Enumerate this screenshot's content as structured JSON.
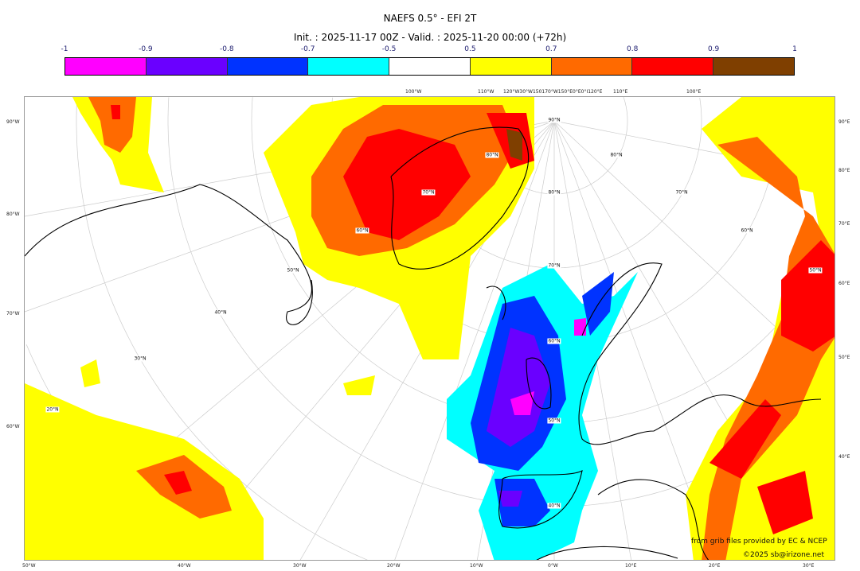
{
  "title": "NAEFS 0.5° - EFI 2T",
  "subtitle": "Init. : 2025-11-17 00Z - Valid. : 2025-11-20 00:00 (+72h)",
  "colorbar": {
    "ticks": [
      "-1",
      "-0.9",
      "-0.8",
      "-0.7",
      "-0.5",
      "0.5",
      "0.7",
      "0.8",
      "0.9",
      "1"
    ],
    "colors": [
      "#ff00ff",
      "#6a00ff",
      "#0033ff",
      "#00ffff",
      "#ffffff",
      "#ffff00",
      "#ff6a00",
      "#ff0000",
      "#7f3f00"
    ]
  },
  "axes": {
    "left": [
      "90°W",
      "80°W",
      "70°W",
      "60°W"
    ],
    "right": [
      "90°E",
      "80°E",
      "70°E",
      "60°E",
      "50°E",
      "40°E"
    ],
    "bottom": [
      "50°W",
      "40°W",
      "30°W",
      "20°W",
      "10°W",
      "0°W",
      "10°E",
      "20°E",
      "30°E"
    ],
    "top": [
      "100°W",
      "110°W",
      "120°W30°W150170°W150°E0°E0°I120°E",
      "110°E",
      "100°E"
    ]
  },
  "lat_labels": [
    "90°N",
    "80°N",
    "70°N",
    "60°N",
    "50°N",
    "40°N",
    "80°N",
    "70°N",
    "60°N",
    "50°N",
    "40°N",
    "30°N",
    "20°N",
    "80°N",
    "70°N",
    "60°N",
    "50°N"
  ],
  "credits": {
    "source": "from grib files provided by EC & NCEP",
    "copyright": "©2025 sb@irizone.net"
  }
}
